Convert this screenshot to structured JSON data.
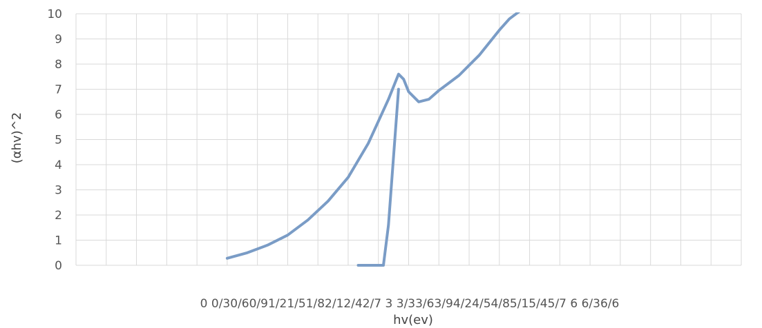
{
  "chart_data": {
    "type": "line",
    "title": "",
    "xlabel": "hv(ev)",
    "ylabel": "(αhv)^2",
    "x_tick_labels": [
      "0",
      "0/3",
      "0/6",
      "0/9",
      "1/2",
      "1/5",
      "1/8",
      "2/1",
      "2/4",
      "2/7",
      "3",
      "3/3",
      "3/6",
      "3/9",
      "4/2",
      "4/5",
      "4/8",
      "5/1",
      "5/4",
      "5/7",
      "6",
      "6/3",
      "6/6"
    ],
    "x_tick_display": "0  0/30/60/91/21/51/82/12/42/7  3  3/33/63/94/24/54/85/15/45/7  6  6/36/6",
    "xlim": [
      0,
      6.6
    ],
    "ylim": [
      0,
      10
    ],
    "y_ticks": [
      0,
      1,
      2,
      3,
      4,
      5,
      6,
      7,
      8,
      9,
      10
    ],
    "grid": true,
    "series": [
      {
        "x": [
          1.5,
          1.7,
          1.9,
          2.1,
          2.3,
          2.5,
          2.7,
          2.9,
          3.1,
          3.2,
          3.25,
          3.3,
          3.4,
          3.5,
          3.6,
          3.7,
          3.8,
          3.9,
          4.0,
          4.1,
          4.2,
          4.3,
          4.4
        ],
        "y": [
          0.28,
          0.5,
          0.8,
          1.2,
          1.8,
          2.55,
          3.5,
          4.85,
          6.6,
          7.6,
          7.4,
          6.9,
          6.5,
          6.6,
          6.95,
          7.25,
          7.55,
          7.95,
          8.35,
          8.85,
          9.35,
          9.8,
          10.1
        ],
        "color": "#7a9cc6"
      },
      {
        "x": [
          2.8,
          2.95,
          3.05,
          3.1,
          3.2
        ],
        "y": [
          0,
          0,
          0,
          1.6,
          7.0
        ],
        "color": "#7a9cc6"
      }
    ]
  }
}
